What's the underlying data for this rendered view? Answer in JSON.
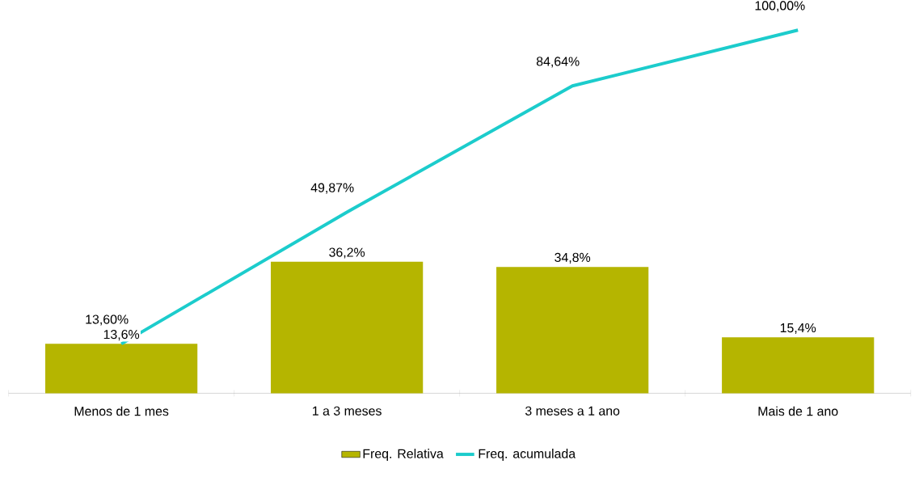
{
  "chart_data": {
    "type": "bar",
    "categories": [
      "Menos de 1 mes",
      "1 a 3 meses",
      "3 meses a 1 ano",
      "Mais de 1 ano"
    ],
    "series": [
      {
        "name": "Freq. Relativa",
        "color": "#b5b500",
        "values": [
          13.6,
          36.2,
          34.8,
          15.4
        ],
        "value_labels": [
          "13,6%",
          "36,2%",
          "34,8%",
          "15,4%"
        ]
      },
      {
        "name": "Freq. acumulada",
        "type": "line",
        "color": "#1ccccc",
        "values": [
          13.6,
          49.87,
          84.64,
          100
        ],
        "value_labels": [
          "13,60%",
          "49,87%",
          "84,64%",
          "100,00%"
        ]
      }
    ],
    "legend": "bottom"
  }
}
